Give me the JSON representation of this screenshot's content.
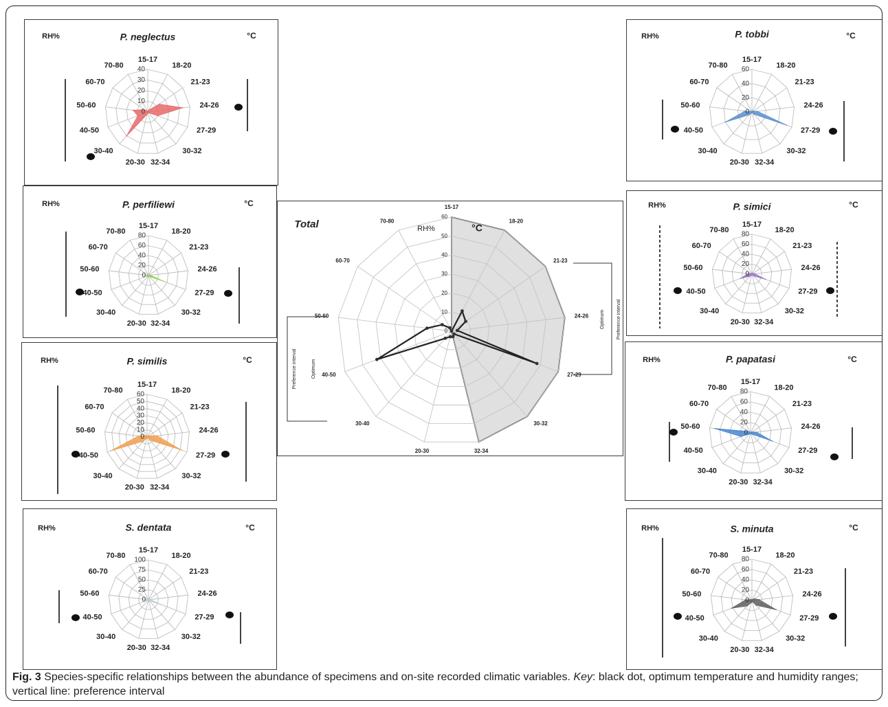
{
  "figure_label": "Fig. 3",
  "caption_text_1": " Species-specific relationships between the abundance of specimens and on-site recorded climatic variables. ",
  "caption_key_word": "Key",
  "caption_text_2": ": black dot, optimum temperature and humidity ranges; vertical line: preference interval",
  "rh_label": "RH%",
  "temp_label": "°C",
  "temp_categories": [
    "15-17",
    "18-20",
    "21-23",
    "24-26",
    "27-29",
    "30-32",
    "32-34"
  ],
  "rh_categories": [
    "20-30",
    "30-40",
    "40-50",
    "50-60",
    "60-70",
    "70-80"
  ],
  "colors": {
    "neglectus": "#e86a6a",
    "tobbi": "#5b8fd0",
    "perfiliewi": "#9bd05a",
    "simici": "#9a7ac8",
    "similis": "#f0a050",
    "papatasi": "#4a86d0",
    "dentata": "#b8d4d8",
    "minuta": "#606060",
    "total_shade": "#e0e0e0"
  },
  "chart_data": [
    {
      "type": "radar",
      "title": "P. neglectus",
      "ticks": [
        0,
        10,
        20,
        30,
        40
      ],
      "max": 40,
      "color": "#e86a6a",
      "temperature": [
        0,
        2,
        13,
        33,
        10,
        1,
        0
      ],
      "humidity": [
        2,
        30,
        10,
        14,
        4,
        1
      ],
      "optimum": {
        "temperature": "24-26",
        "humidity": "30-40"
      },
      "preference_interval": {
        "temperature": "21-23 to 27-29",
        "humidity": "70-80 to 30-40"
      }
    },
    {
      "type": "radar",
      "title": "P. tobbi",
      "ticks": [
        0,
        20,
        40,
        60
      ],
      "max": 60,
      "color": "#5b8fd0",
      "temperature": [
        0,
        1,
        2,
        8,
        52,
        4,
        0
      ],
      "humidity": [
        1,
        5,
        40,
        10,
        1,
        0
      ],
      "optimum": {
        "temperature": "27-29",
        "humidity": "40-50"
      },
      "preference_interval": {
        "temperature": "24-26 to 30-32",
        "humidity": "50-60 to 40-50"
      }
    },
    {
      "type": "radar",
      "title": "P. perfiliewi",
      "ticks": [
        0,
        20,
        40,
        60,
        80
      ],
      "max": 80,
      "color": "#9bd05a",
      "temperature": [
        0,
        0,
        1,
        4,
        35,
        3,
        0
      ],
      "humidity": [
        0,
        3,
        4,
        2,
        0,
        0
      ],
      "optimum": {
        "temperature": "27-29",
        "humidity": "40-50"
      },
      "preference_interval": {
        "temperature": "24-26 to 30-32",
        "humidity": "70-80 to 30-40"
      }
    },
    {
      "type": "radar",
      "title": "P. simici",
      "ticks": [
        0,
        20,
        40,
        60,
        80
      ],
      "max": 80,
      "color": "#9a7ac8",
      "temperature": [
        0,
        1,
        3,
        6,
        30,
        5,
        0
      ],
      "humidity": [
        2,
        6,
        25,
        8,
        2,
        1
      ],
      "optimum": {
        "temperature": "27-29",
        "humidity": "40-50"
      },
      "preference_interval": {
        "temperature": "21-23 to 30-32",
        "humidity": "70-80 to 30-40"
      }
    },
    {
      "type": "radar",
      "title": "P. similis",
      "ticks": [
        0,
        10,
        20,
        30,
        40,
        50,
        60
      ],
      "max": 60,
      "color": "#f0a050",
      "temperature": [
        0,
        1,
        3,
        14,
        52,
        6,
        0
      ],
      "humidity": [
        2,
        8,
        55,
        12,
        3,
        1
      ],
      "optimum": {
        "temperature": "27-29",
        "humidity": "40-50"
      },
      "preference_interval": {
        "temperature": "21-23 to 30-32",
        "humidity": "70-80 to 20-30"
      }
    },
    {
      "type": "radar",
      "title": "P. papatasi",
      "ticks": [
        0,
        20,
        40,
        60,
        80
      ],
      "max": 80,
      "color": "#4a86d0",
      "temperature": [
        0,
        1,
        3,
        12,
        45,
        3,
        0
      ],
      "humidity": [
        1,
        3,
        20,
        70,
        5,
        1
      ],
      "optimum": {
        "temperature": "27-29",
        "humidity": "50-60"
      },
      "preference_interval": {
        "temperature": "24-26 to 27-29",
        "humidity": "50-60 to 40-50"
      }
    },
    {
      "type": "radar",
      "title": "S. dentata",
      "ticks": [
        0,
        25,
        50,
        75,
        100
      ],
      "max": 100,
      "color": "#b8d4d8",
      "temperature": [
        0,
        0,
        1,
        5,
        45,
        4,
        0
      ],
      "humidity": [
        0,
        2,
        8,
        2,
        0,
        0
      ],
      "optimum": {
        "temperature": "27-29",
        "humidity": "40-50"
      },
      "preference_interval": {
        "temperature": "27-29 to 30-32",
        "humidity": "50-60 to 40-50"
      }
    },
    {
      "type": "radar",
      "title": "S. minuta",
      "ticks": [
        0,
        20,
        40,
        60,
        80
      ],
      "max": 80,
      "color": "#606060",
      "temperature": [
        0,
        2,
        6,
        14,
        50,
        12,
        2
      ],
      "humidity": [
        4,
        14,
        42,
        12,
        3,
        1
      ],
      "optimum": {
        "temperature": "27-29",
        "humidity": "40-50"
      },
      "preference_interval": {
        "temperature": "24-26 to 30-32",
        "humidity": "60-70 to 30-40"
      }
    },
    {
      "type": "radar",
      "title": "Total",
      "ticks": [
        0,
        10,
        20,
        30,
        40,
        50,
        60
      ],
      "max": 60,
      "color": "#222222",
      "temperature": [
        60,
        60,
        60,
        60,
        60,
        60,
        60
      ],
      "temperature_line": [
        0,
        12,
        9,
        3,
        48,
        2,
        3
      ],
      "humidity": [
        3,
        5,
        42,
        13,
        6,
        2
      ],
      "optimum_label": "Optimum",
      "preference_label": "Preference interval"
    }
  ]
}
